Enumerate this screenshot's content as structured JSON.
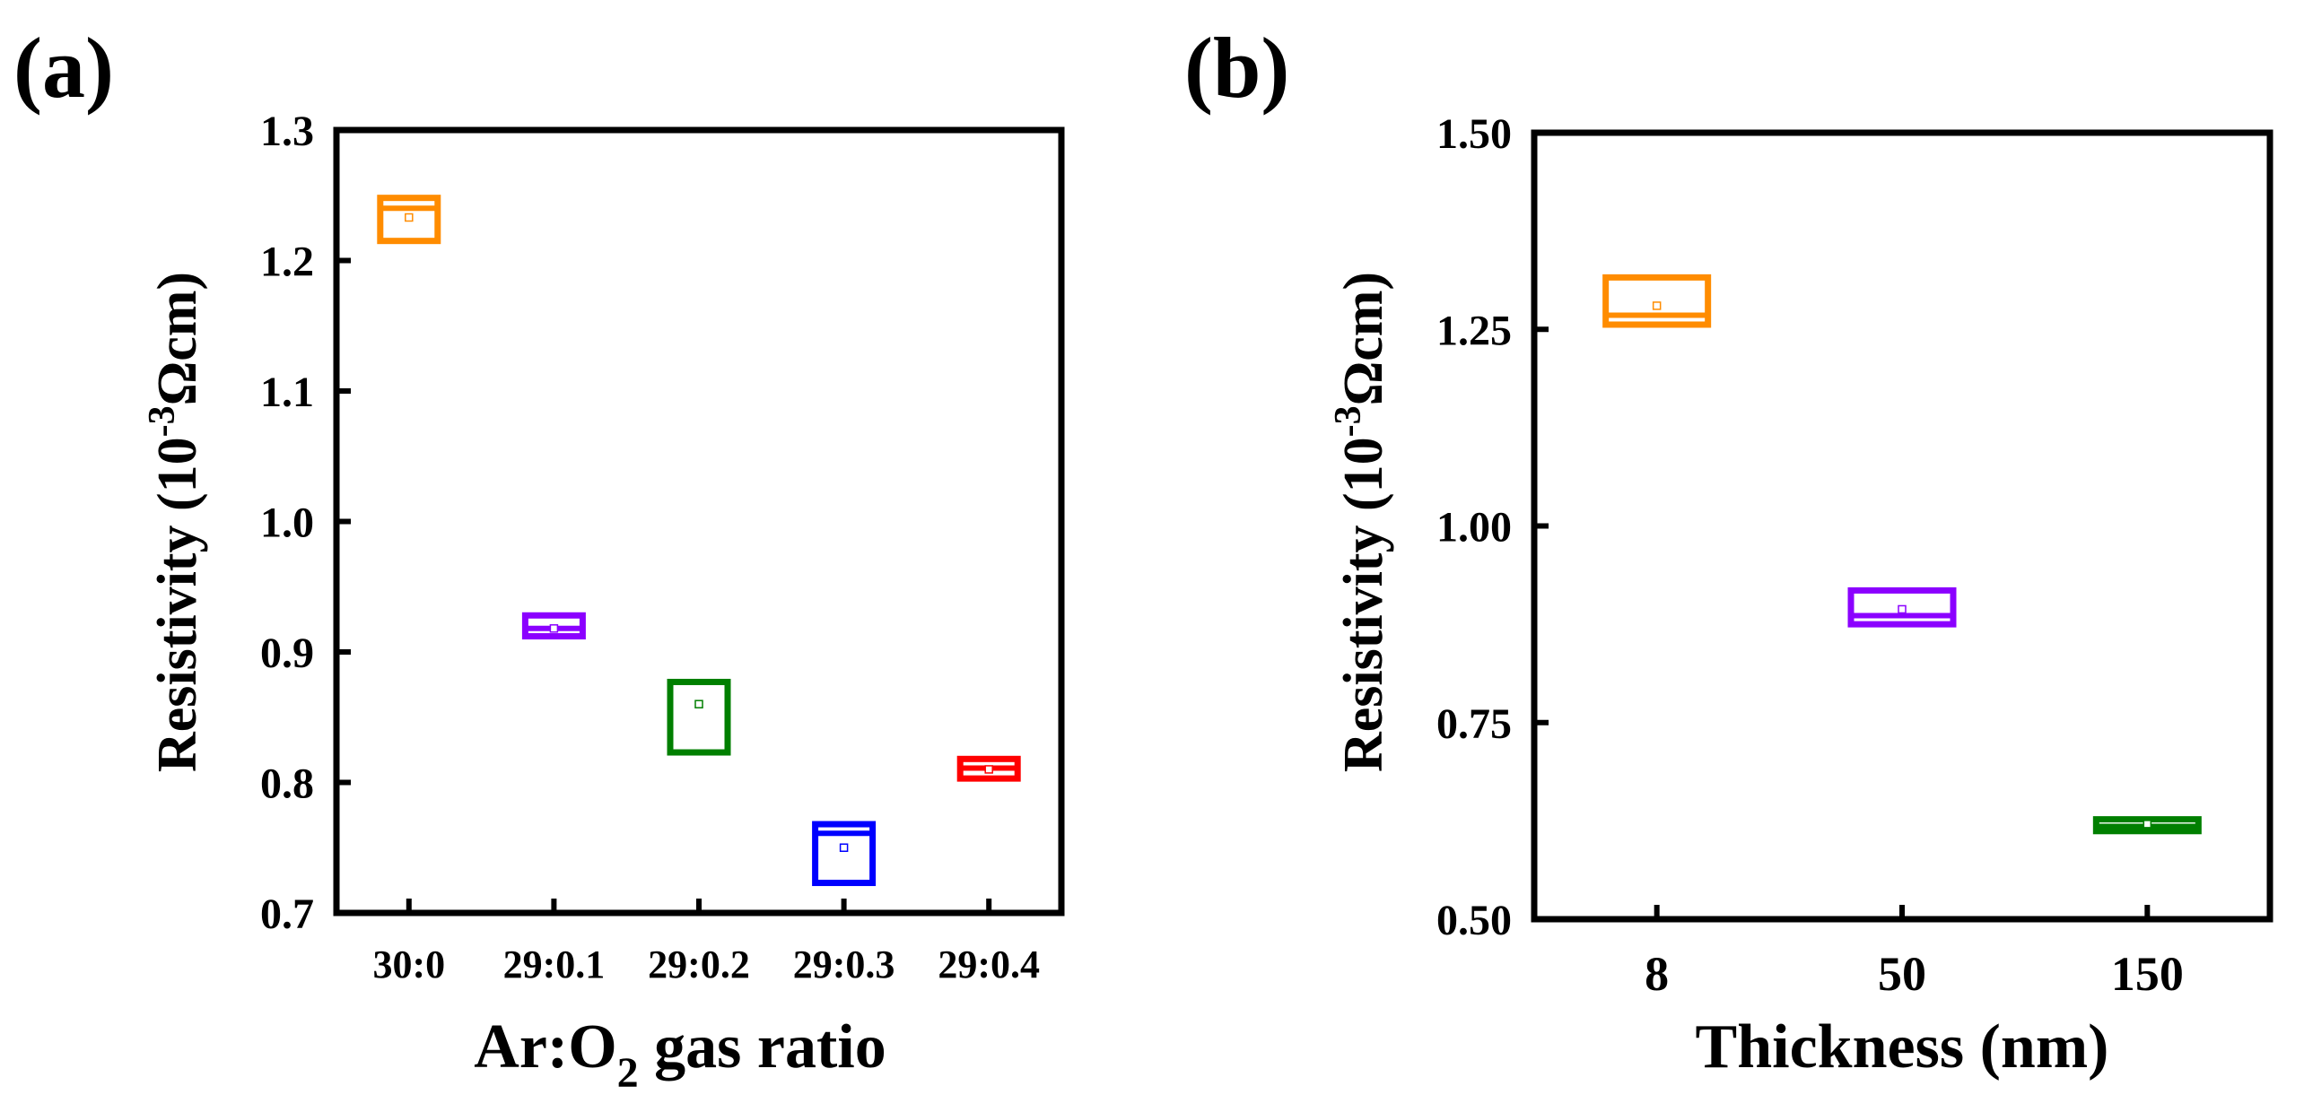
{
  "chart_data": [
    {
      "panel_label": "(a)",
      "type": "box",
      "xlabel_main": "Ar:O",
      "xlabel_sub": "2",
      "xlabel_rest": " gas ratio",
      "ylabel_main": "Resistivity (10",
      "ylabel_sup": "-3",
      "ylabel_rest": "Ωcm)",
      "ylim": [
        0.7,
        1.3
      ],
      "yticks": [
        0.7,
        0.8,
        0.9,
        1.0,
        1.1,
        1.2,
        1.3
      ],
      "ytick_labels": [
        "0.7",
        "0.8",
        "0.9",
        "1.0",
        "1.1",
        "1.2",
        "1.3"
      ],
      "categories": [
        "30:0",
        "29:0.1",
        "29:0.2",
        "29:0.3",
        "29:0.4"
      ],
      "boxes": [
        {
          "category": "30:0",
          "q1": 1.215,
          "median": 1.24,
          "q3": 1.248,
          "mean": 1.233,
          "color": "#ff8c00"
        },
        {
          "category": "29:0.1",
          "q1": 0.912,
          "median": 0.918,
          "q3": 0.928,
          "mean": 0.918,
          "color": "#8b00ff"
        },
        {
          "category": "29:0.2",
          "q1": 0.823,
          "median": 0.823,
          "q3": 0.877,
          "mean": 0.86,
          "color": "#007f00"
        },
        {
          "category": "29:0.3",
          "q1": 0.723,
          "median": 0.761,
          "q3": 0.768,
          "mean": 0.75,
          "color": "#0000ff"
        },
        {
          "category": "29:0.4",
          "q1": 0.803,
          "median": 0.811,
          "q3": 0.818,
          "mean": 0.81,
          "color": "#ff0000"
        }
      ]
    },
    {
      "panel_label": "(b)",
      "type": "box",
      "xlabel_main": "Thickness (nm)",
      "ylabel_main": "Resistivity (10",
      "ylabel_sup": "-3",
      "ylabel_rest": "Ωcm)",
      "ylim": [
        0.5,
        1.5
      ],
      "yticks": [
        0.5,
        0.75,
        1.0,
        1.25,
        1.5
      ],
      "ytick_labels": [
        "0.50",
        "0.75",
        "1.00",
        "1.25",
        "1.50"
      ],
      "categories": [
        "8",
        "50",
        "150"
      ],
      "boxes": [
        {
          "category": "8",
          "q1": 1.256,
          "median": 1.268,
          "q3": 1.316,
          "mean": 1.28,
          "color": "#ff8c00"
        },
        {
          "category": "50",
          "q1": 0.875,
          "median": 0.886,
          "q3": 0.918,
          "mean": 0.894,
          "color": "#8b00ff"
        },
        {
          "category": "150",
          "q1": 0.612,
          "median": 0.618,
          "q3": 0.627,
          "mean": 0.621,
          "color": "#007f00"
        }
      ]
    }
  ]
}
